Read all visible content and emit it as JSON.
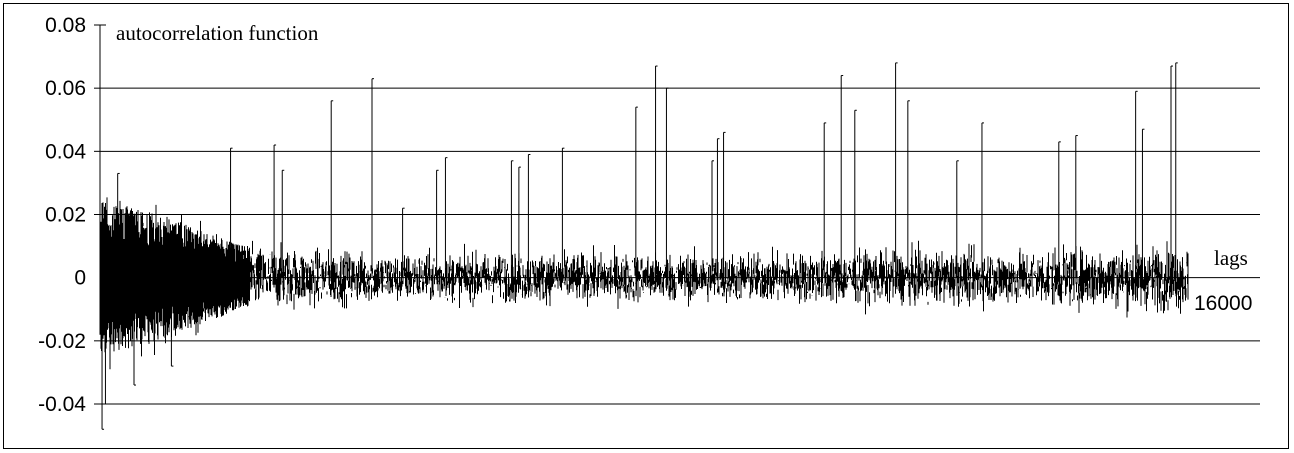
{
  "chart_data": {
    "type": "bar",
    "title": "",
    "ylabel": "autocorrelation function",
    "xlabel": "lags",
    "x_tick_label": "16000",
    "xlim": [
      0,
      16000
    ],
    "ylim": [
      -0.04,
      0.08
    ],
    "y_ticks": [
      "0.08",
      "0.06",
      "0.04",
      "0.02",
      "0",
      "-0.02",
      "-0.04"
    ],
    "y_tick_values": [
      0.08,
      0.06,
      0.04,
      0.02,
      0,
      -0.02,
      -0.04
    ],
    "grid": true,
    "noise_envelope": [
      {
        "x": 0,
        "amp": 0.028
      },
      {
        "x": 1000,
        "amp": 0.022
      },
      {
        "x": 2000,
        "amp": 0.012
      },
      {
        "x": 4000,
        "amp": 0.009
      },
      {
        "x": 9000,
        "amp": 0.009
      },
      {
        "x": 13500,
        "amp": 0.01
      },
      {
        "x": 16000,
        "amp": 0.012
      }
    ],
    "spikes": [
      {
        "x": 30,
        "value": -0.048
      },
      {
        "x": 80,
        "value": -0.04
      },
      {
        "x": 500,
        "value": -0.034
      },
      {
        "x": 260,
        "value": 0.033
      },
      {
        "x": 1050,
        "value": -0.028
      },
      {
        "x": 1920,
        "value": 0.041
      },
      {
        "x": 2560,
        "value": 0.042
      },
      {
        "x": 2680,
        "value": 0.034
      },
      {
        "x": 3400,
        "value": 0.056
      },
      {
        "x": 4000,
        "value": 0.063
      },
      {
        "x": 4450,
        "value": 0.022
      },
      {
        "x": 4950,
        "value": 0.034
      },
      {
        "x": 5080,
        "value": 0.038
      },
      {
        "x": 6050,
        "value": 0.037
      },
      {
        "x": 6160,
        "value": 0.035
      },
      {
        "x": 6300,
        "value": 0.039
      },
      {
        "x": 6800,
        "value": 0.041
      },
      {
        "x": 7880,
        "value": 0.054
      },
      {
        "x": 8170,
        "value": 0.067
      },
      {
        "x": 8330,
        "value": 0.06
      },
      {
        "x": 9000,
        "value": 0.037
      },
      {
        "x": 9080,
        "value": 0.044
      },
      {
        "x": 9170,
        "value": 0.046
      },
      {
        "x": 10650,
        "value": 0.049
      },
      {
        "x": 10900,
        "value": 0.064
      },
      {
        "x": 11100,
        "value": 0.053
      },
      {
        "x": 11700,
        "value": 0.068
      },
      {
        "x": 11880,
        "value": 0.056
      },
      {
        "x": 12600,
        "value": 0.037
      },
      {
        "x": 12970,
        "value": 0.049
      },
      {
        "x": 14100,
        "value": 0.043
      },
      {
        "x": 14350,
        "value": 0.045
      },
      {
        "x": 15230,
        "value": 0.059
      },
      {
        "x": 15330,
        "value": 0.047
      },
      {
        "x": 15750,
        "value": 0.067
      },
      {
        "x": 15820,
        "value": 0.068
      }
    ]
  }
}
